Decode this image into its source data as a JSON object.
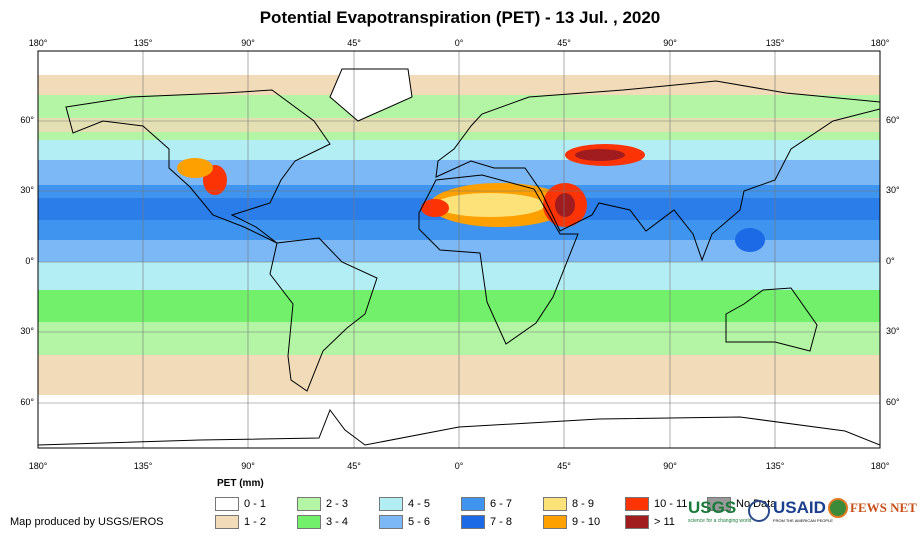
{
  "title": "Potential Evapotranspiration (PET) - 13 Jul. , 2020",
  "lon_labels": [
    "180°",
    "135°",
    "90°",
    "45°",
    "0°",
    "45°",
    "90°",
    "135°",
    "180°"
  ],
  "lat_labels": [
    "60°",
    "30°",
    "0°",
    "30°",
    "60°"
  ],
  "legend": {
    "title": "PET (mm)",
    "items": [
      {
        "label": "0 - 1",
        "color": "#ffffff"
      },
      {
        "label": "1 - 2",
        "color": "#f1dbb8"
      },
      {
        "label": "2 - 3",
        "color": "#b3f5a5"
      },
      {
        "label": "3 - 4",
        "color": "#72f06b"
      },
      {
        "label": "4 - 5",
        "color": "#b4eef5"
      },
      {
        "label": "5 - 6",
        "color": "#7bb8f5"
      },
      {
        "label": "6 - 7",
        "color": "#3e94ee"
      },
      {
        "label": "7 - 8",
        "color": "#1c6ae6"
      },
      {
        "label": "8 - 9",
        "color": "#fde27a"
      },
      {
        "label": "9 - 10",
        "color": "#fda000"
      },
      {
        "label": "10 - 11",
        "color": "#fb3305"
      },
      {
        "label": "> 11",
        "color": "#a01c1f"
      },
      {
        "label": "No Data",
        "color": "#999999"
      }
    ]
  },
  "credit": "Map produced by USGS/EROS",
  "logos": {
    "usgs": "USGS",
    "usgs_tagline": "science for a changing world",
    "usaid": "USAID",
    "usaid_tagline": "FROM THE AMERICAN PEOPLE",
    "fews": "FEWS NET"
  }
}
